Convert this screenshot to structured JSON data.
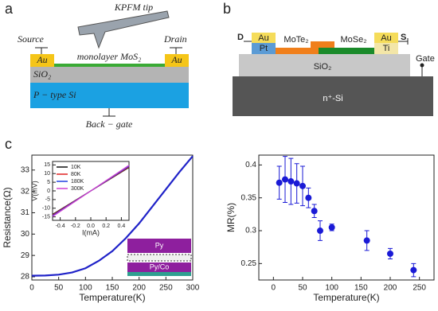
{
  "panel_a": {
    "label": "a",
    "tip": "KPFM tip",
    "source": "Source",
    "drain": "Drain",
    "au_left": "Au",
    "au_right": "Au",
    "channel": "monolayer MoS₂",
    "oxide": "SiO₂",
    "substrate": "P − type Si",
    "gate": "Back − gate"
  },
  "panel_b": {
    "label": "b",
    "drain": "D",
    "source": "S",
    "au_left": "Au",
    "pt": "Pt",
    "mote2": "MoTe₂",
    "mose2": "MoSe₂",
    "au_right": "Au",
    "ti": "Ti",
    "oxide": "SiO₂",
    "gate": "Gate",
    "substrate": "n⁺-Si"
  },
  "panel_c": {
    "label": "c",
    "inset_top": "Py",
    "inset_bottom": "Py/Co"
  },
  "chart_data": [
    {
      "type": "line",
      "xlabel": "Temperature(K)",
      "ylabel": "Resistance(Ω)",
      "x": [
        0,
        25,
        50,
        75,
        100,
        125,
        150,
        175,
        200,
        225,
        250,
        275,
        300
      ],
      "series": [
        {
          "color": "#1f22c8",
          "values": [
            28.05,
            28.06,
            28.1,
            28.2,
            28.4,
            28.75,
            29.2,
            29.8,
            30.5,
            31.3,
            32.1,
            32.9,
            33.65
          ]
        }
      ],
      "xlim": [
        0,
        300
      ],
      "xticks": [
        0,
        50,
        100,
        150,
        200,
        250,
        300
      ],
      "ylim": [
        27.85,
        33.7
      ],
      "yticks": [
        28,
        29,
        30,
        31,
        32,
        33
      ]
    },
    {
      "type": "line",
      "xlabel": "I(mA)",
      "ylabel": "V(mV)",
      "x": [
        -0.5,
        0,
        0.5
      ],
      "series": [
        {
          "name": "10K",
          "color": "#111111",
          "values": [
            -13.6,
            0,
            13.6
          ]
        },
        {
          "name": "80K",
          "color": "#e02020",
          "values": [
            -13.9,
            0,
            13.9
          ]
        },
        {
          "name": "180K",
          "color": "#2040e0",
          "values": [
            -14.3,
            0,
            14.3
          ]
        },
        {
          "name": "300K",
          "color": "#d040d0",
          "values": [
            -14.8,
            0,
            14.8
          ]
        }
      ],
      "xlim": [
        -0.5,
        0.5
      ],
      "xticks": [
        -0.4,
        -0.2,
        {
          "value": 0,
          "label": "0.0"
        },
        0.2,
        0.4
      ],
      "ylim": [
        -17,
        17
      ],
      "yticks": [
        -15,
        -10,
        -5,
        0,
        5,
        10,
        15
      ],
      "legend": "upper-left"
    },
    {
      "type": "scatter",
      "xlabel": "Temperature(K)",
      "ylabel": "MR(%)",
      "color": "#1a1ad6",
      "x": [
        10,
        20,
        30,
        40,
        50,
        60,
        70,
        80,
        100,
        160,
        200,
        240
      ],
      "values": [
        0.373,
        0.378,
        0.375,
        0.372,
        0.368,
        0.35,
        0.33,
        0.3,
        0.305,
        0.285,
        0.265,
        0.24
      ],
      "errors": [
        0.025,
        0.035,
        0.035,
        0.03,
        0.03,
        0.015,
        0.01,
        0.015,
        0.005,
        0.015,
        0.008,
        0.01
      ],
      "xlim": [
        -25,
        275
      ],
      "xticks": [
        0,
        50,
        100,
        150,
        200,
        250
      ],
      "ylim": [
        0.225,
        0.415
      ],
      "yticks": [
        0.25,
        0.3,
        0.35,
        0.4
      ]
    }
  ]
}
